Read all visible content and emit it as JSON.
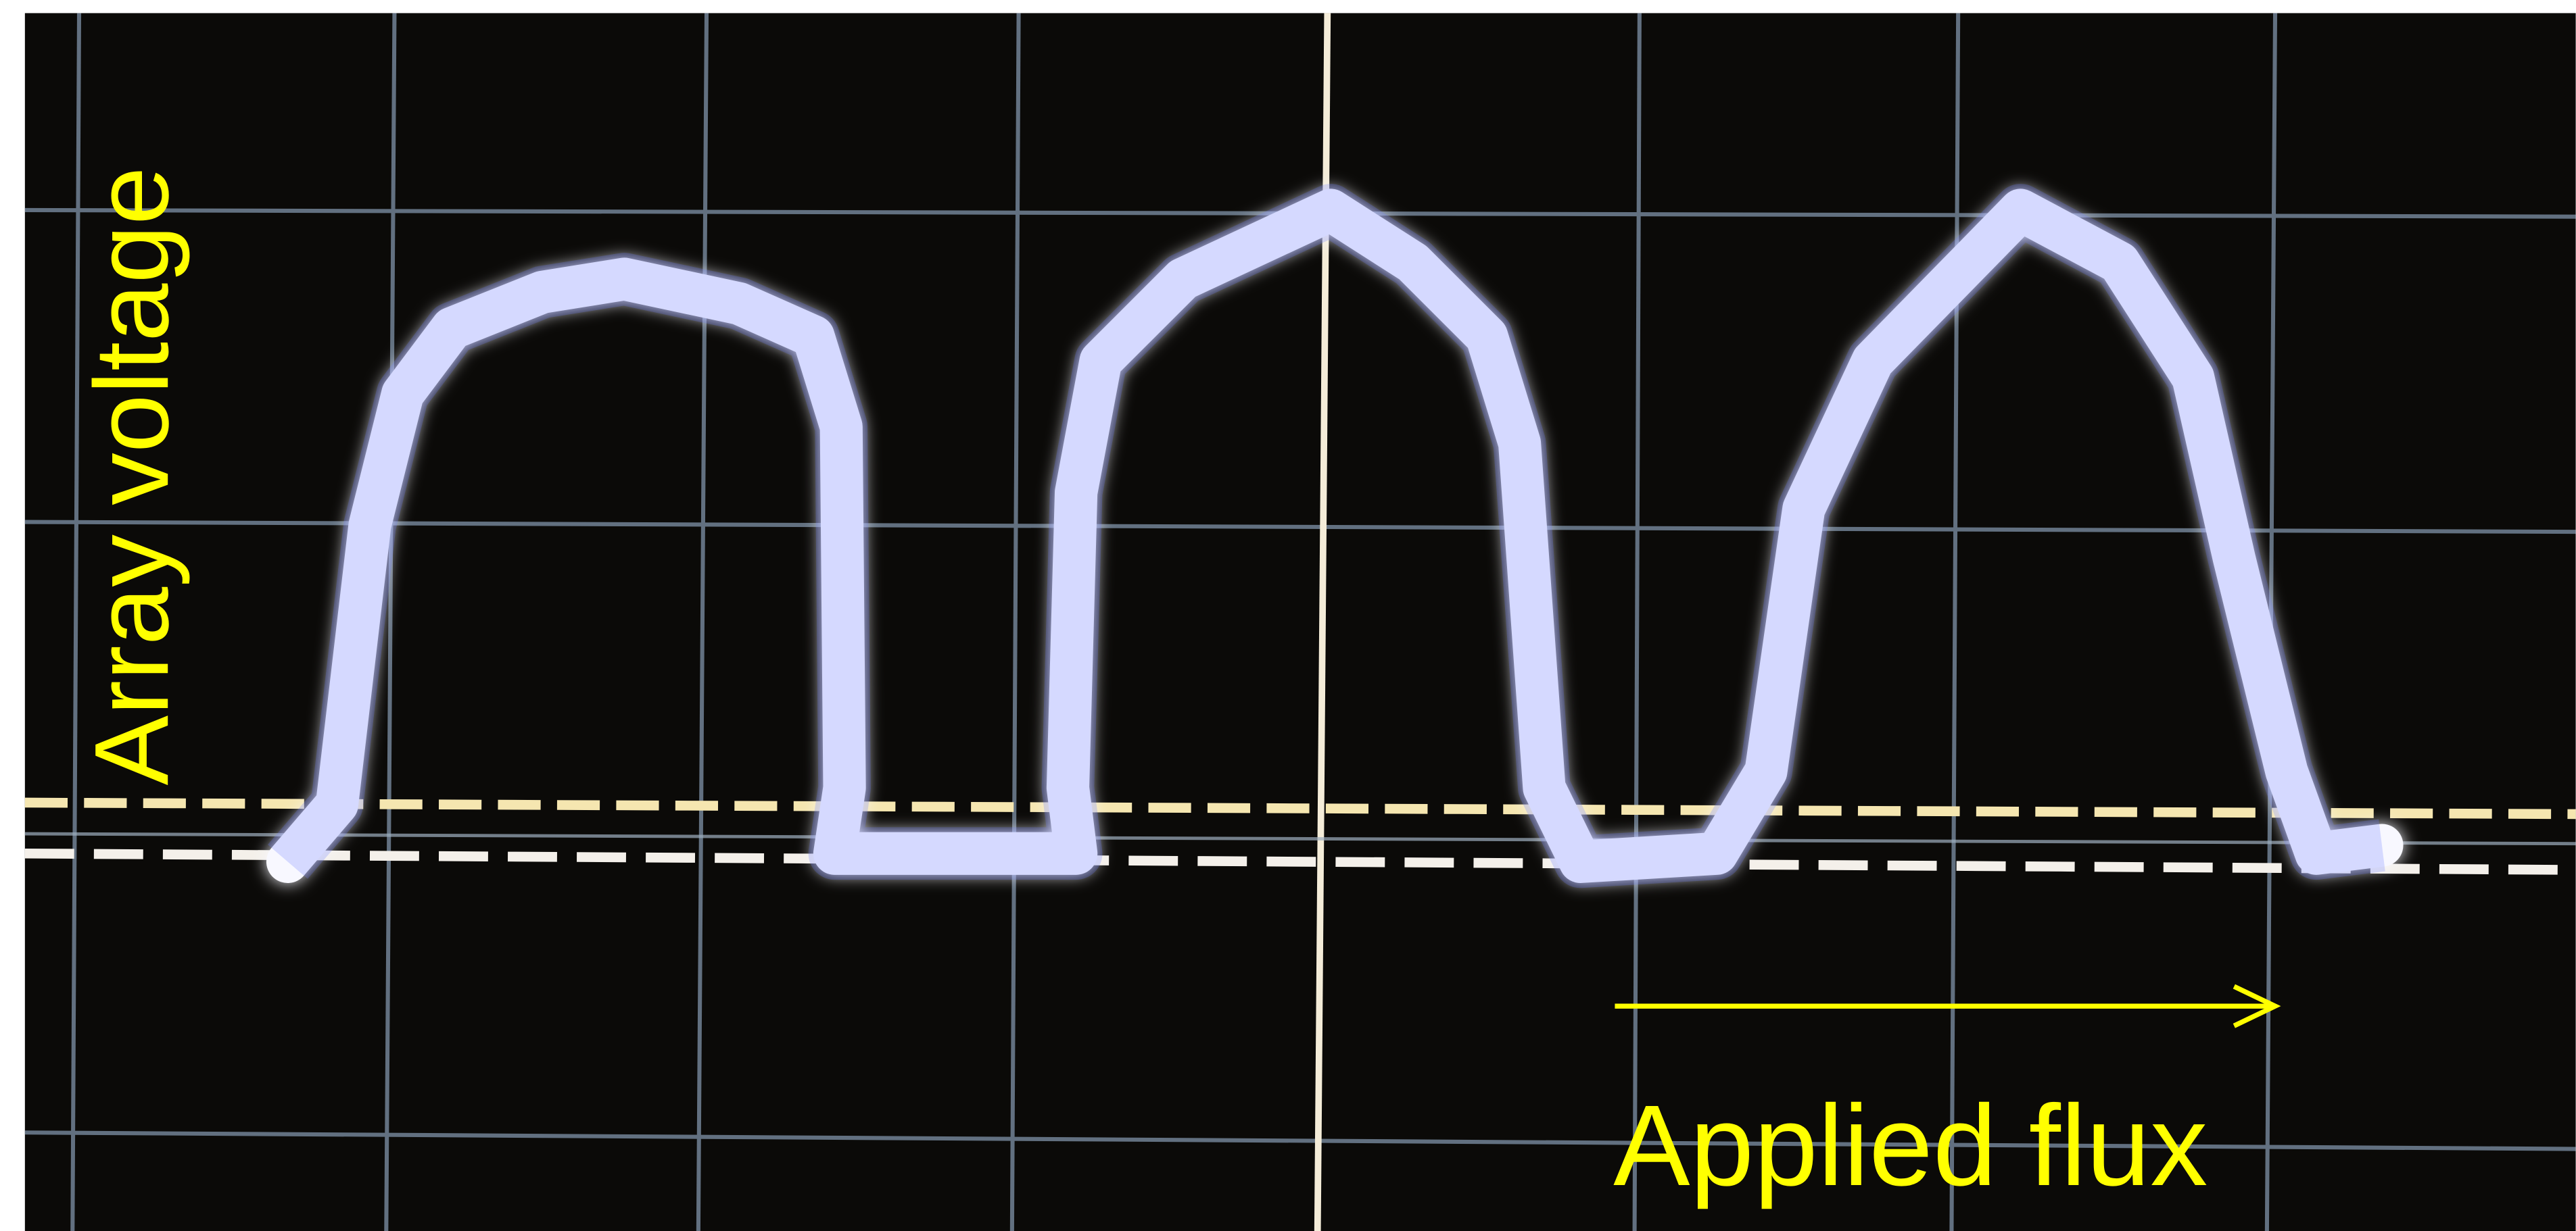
{
  "labels": {
    "y_axis": "Array voltage",
    "x_axis": "Applied flux"
  }
}
